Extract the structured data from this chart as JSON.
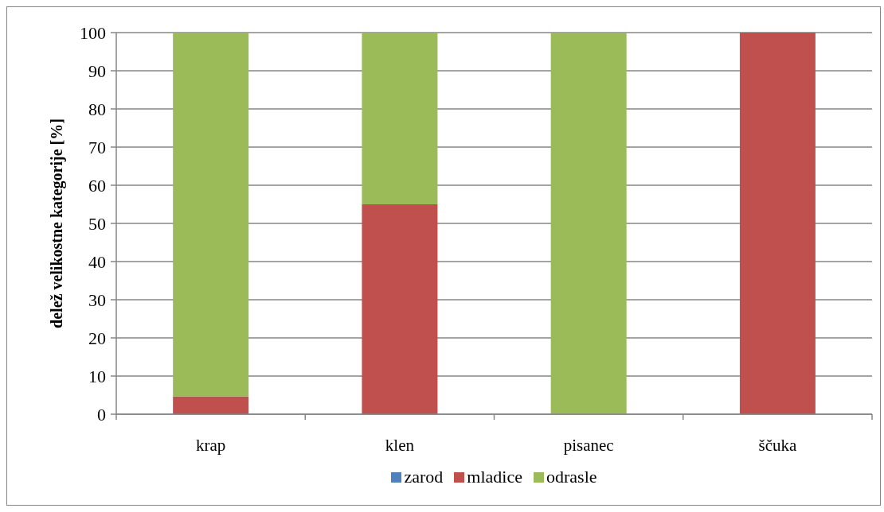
{
  "chart_data": {
    "type": "bar",
    "ylabel": "delež velikostne kategorije [%]",
    "categories": [
      "krap",
      "klen",
      "pisanec",
      "ščuka"
    ],
    "series": [
      {
        "name": "zarod",
        "color": "#4f81bd",
        "values": [
          0,
          0,
          0,
          0
        ]
      },
      {
        "name": "mladice",
        "color": "#c0504d",
        "values": [
          4.7,
          55,
          0,
          100
        ]
      },
      {
        "name": "odrasle",
        "color": "#9bbb59",
        "values": [
          95.3,
          45,
          100,
          0
        ]
      }
    ],
    "stacked": true,
    "ylim": [
      0,
      100
    ],
    "yticks": [
      0,
      10,
      20,
      30,
      40,
      50,
      60,
      70,
      80,
      90,
      100
    ],
    "grid": "y",
    "legend": "bottom"
  }
}
